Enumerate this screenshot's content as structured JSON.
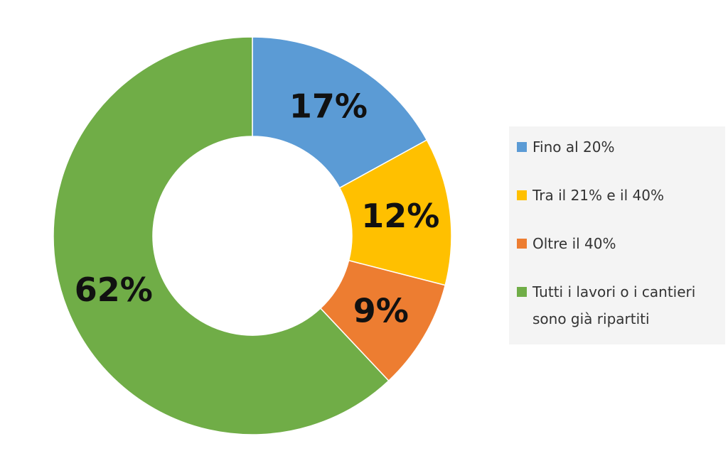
{
  "chart_data": {
    "type": "donut",
    "categories": [
      "Fino al 20%",
      "Tra il 21% e il 40%",
      "Oltre il 40%",
      "Tutti i lavori o i cantieri sono già ripartiti"
    ],
    "values": [
      17,
      12,
      9,
      62
    ],
    "value_labels": [
      "17%",
      "12%",
      "9%",
      "62%"
    ],
    "colors": [
      "#5b9bd5",
      "#ffc000",
      "#ed7d31",
      "#70ad47"
    ],
    "legend": "right"
  }
}
